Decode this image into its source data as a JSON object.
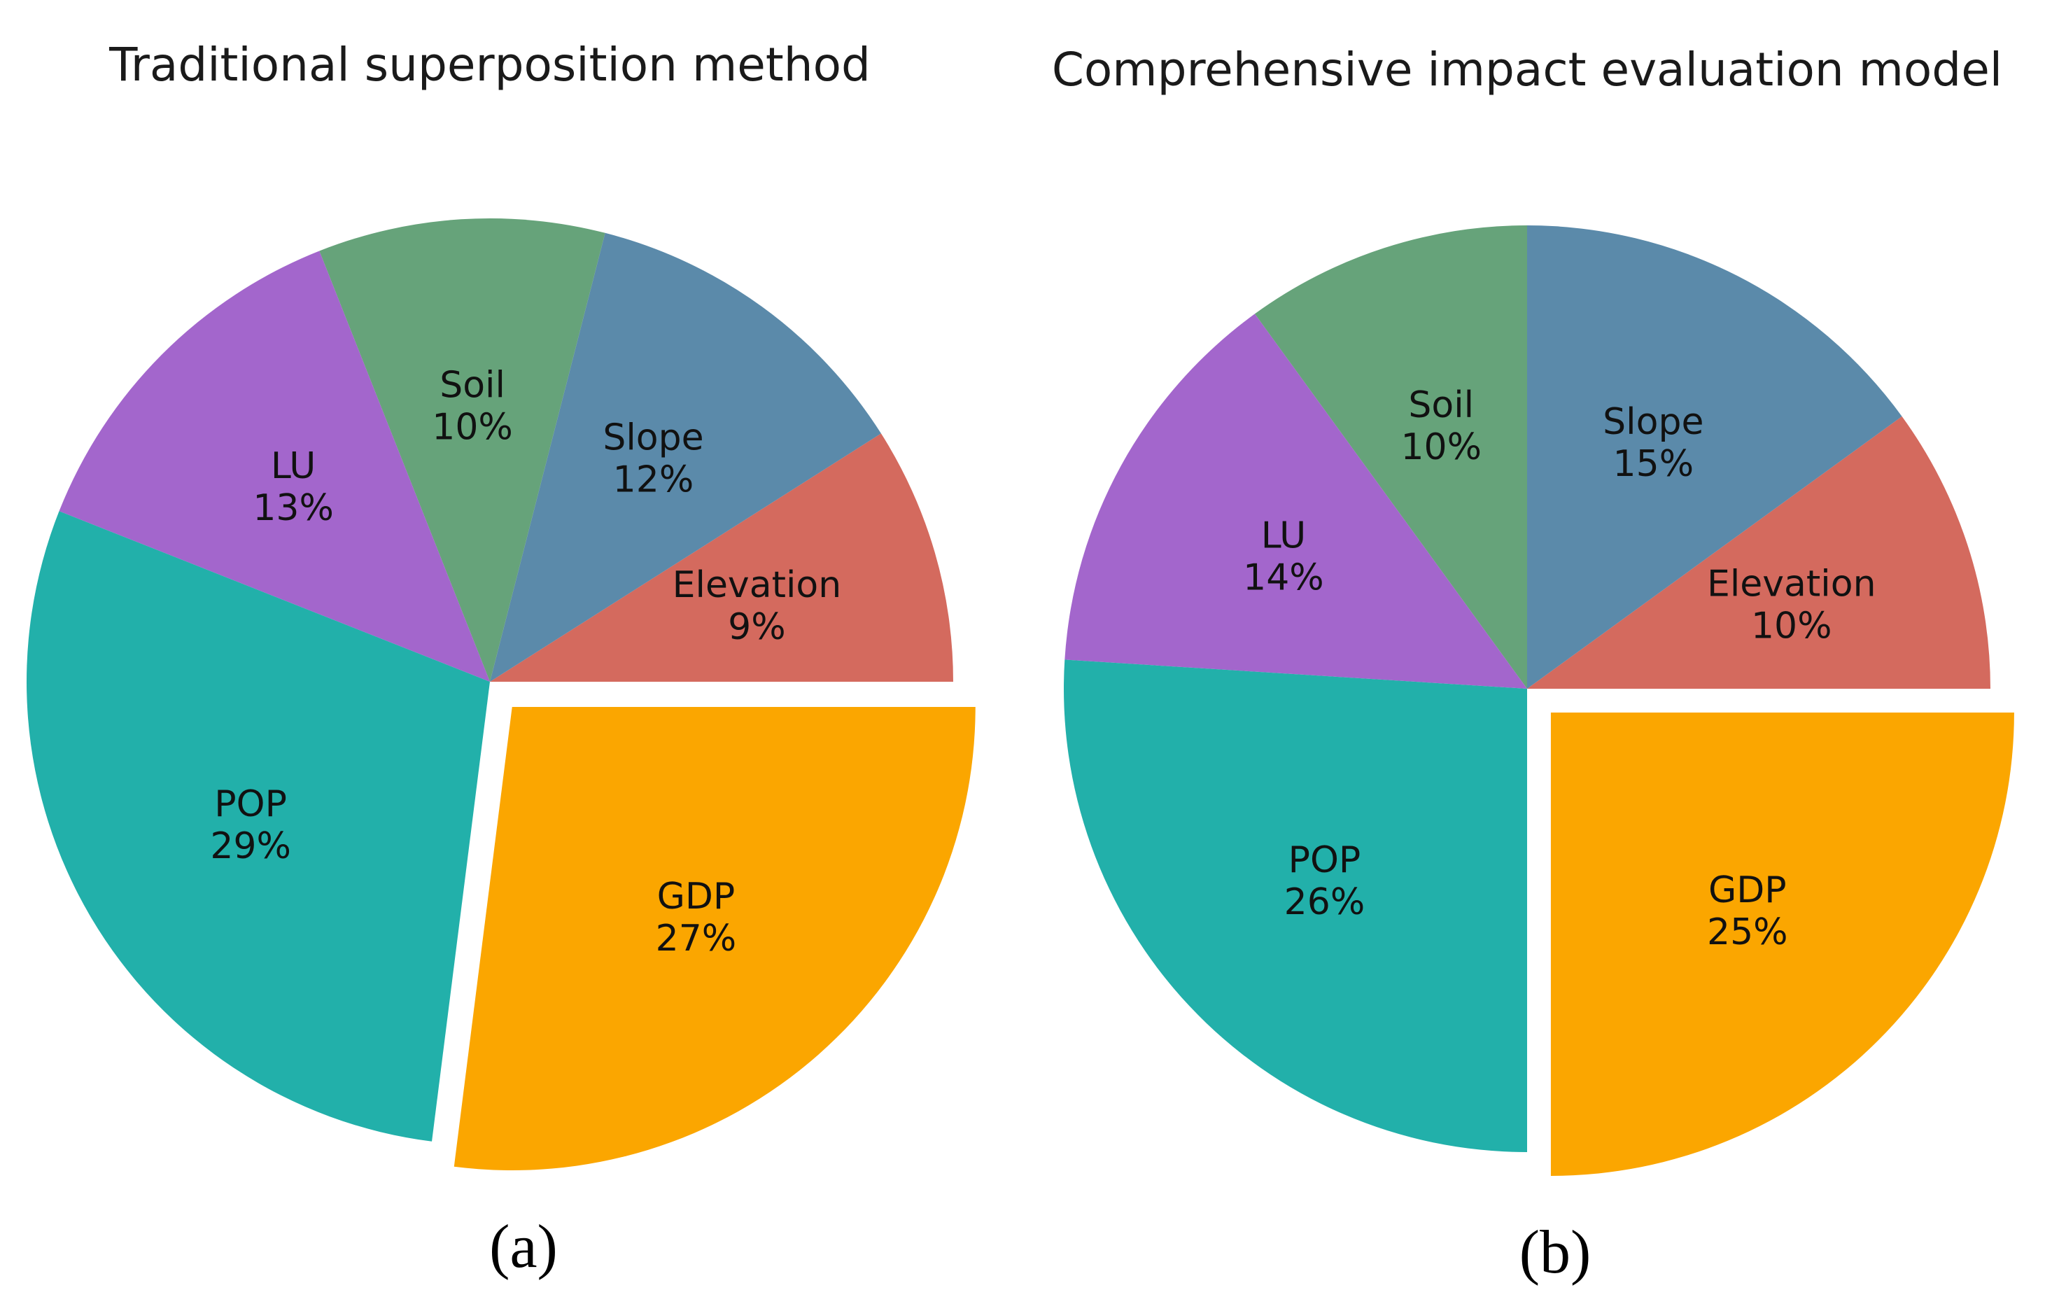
{
  "chart_data": [
    {
      "type": "pie",
      "title": "Traditional superposition method",
      "panel_label": "(a)",
      "start_angle_deg": 0,
      "direction": "counterclockwise",
      "exploded": [
        "GDP"
      ],
      "slices": [
        {
          "label": "Elevation",
          "value": 9,
          "pct_label": "9%",
          "color": "#d46a5e"
        },
        {
          "label": "Slope",
          "value": 12,
          "pct_label": "12%",
          "color": "#5b8aaa"
        },
        {
          "label": "Soil",
          "value": 10,
          "pct_label": "10%",
          "color": "#66a37a"
        },
        {
          "label": "LU",
          "value": 13,
          "pct_label": "13%",
          "color": "#a366cc"
        },
        {
          "label": "POP",
          "value": 29,
          "pct_label": "29%",
          "color": "#22b0aa"
        },
        {
          "label": "GDP",
          "value": 27,
          "pct_label": "27%",
          "color": "#fba600"
        }
      ]
    },
    {
      "type": "pie",
      "title": "Comprehensive impact evaluation model",
      "panel_label": "(b)",
      "start_angle_deg": 0,
      "direction": "counterclockwise",
      "exploded": [
        "GDP"
      ],
      "slices": [
        {
          "label": "Elevation",
          "value": 10,
          "pct_label": "10%",
          "color": "#d46a5e"
        },
        {
          "label": "Slope",
          "value": 15,
          "pct_label": "15%",
          "color": "#5b8aaa"
        },
        {
          "label": "Soil",
          "value": 10,
          "pct_label": "10%",
          "color": "#66a37a"
        },
        {
          "label": "LU",
          "value": 14,
          "pct_label": "14%",
          "color": "#a366cc"
        },
        {
          "label": "POP",
          "value": 26,
          "pct_label": "26%",
          "color": "#22b0aa"
        },
        {
          "label": "GDP",
          "value": 25,
          "pct_label": "25%",
          "color": "#fba600"
        }
      ]
    }
  ]
}
